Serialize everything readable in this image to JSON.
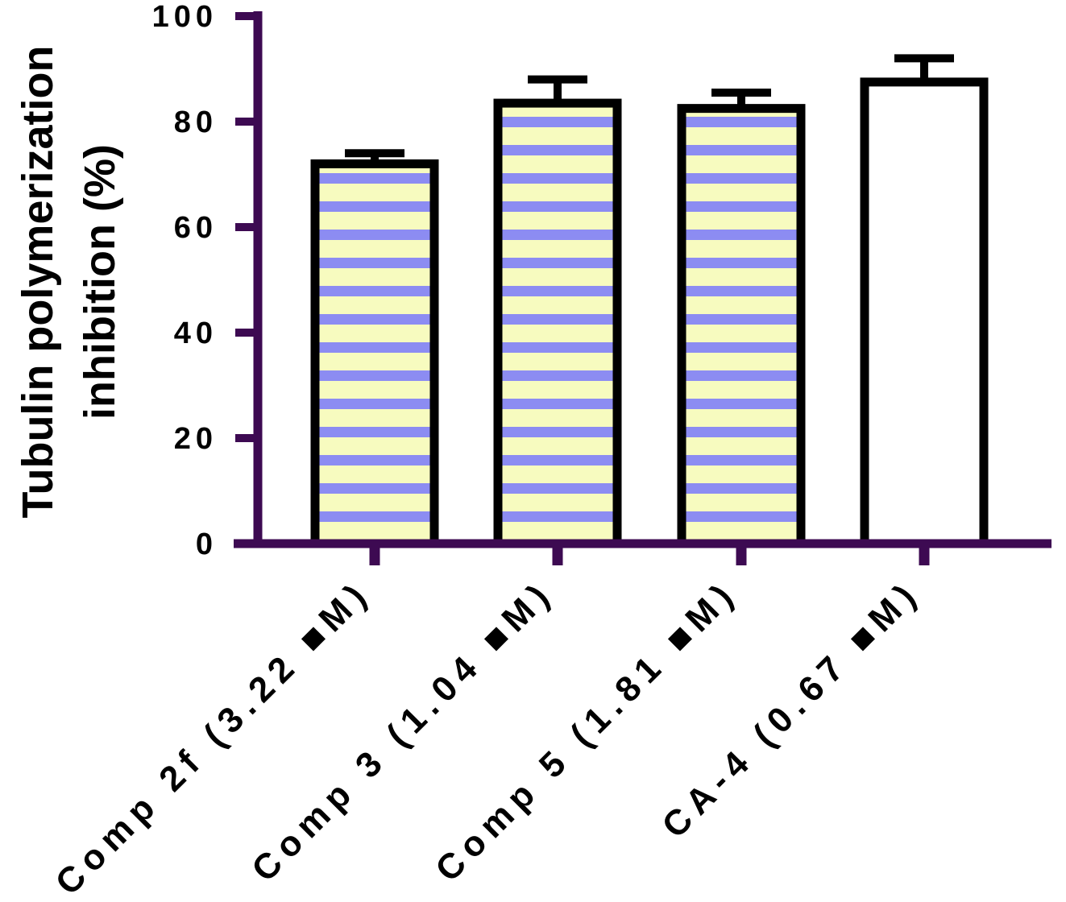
{
  "chart_data": {
    "type": "bar",
    "title": "",
    "xlabel": "",
    "ylabel_lines": [
      "Tubulin polymerization",
      "inhibition (%)"
    ],
    "categories": [
      "Comp 2f (3.22 ■M)",
      "Comp 3 (1.04 ■M)",
      "Comp 5 (1.81 ■M)",
      "CA-4 (0.67 ■M)"
    ],
    "values": [
      72,
      83.5,
      82.5,
      87.5
    ],
    "errors": [
      2,
      4.5,
      3,
      4.5
    ],
    "patterns": [
      "striped",
      "striped",
      "striped",
      "open"
    ],
    "ylim": [
      0,
      100
    ],
    "yticks": [
      0,
      20,
      40,
      60,
      80,
      100
    ],
    "grid": false,
    "colors": {
      "axis": "#3d0a52",
      "bar_outline": "#000000",
      "stripe_a": "#f7fbbf",
      "stripe_b": "#8c8cf2",
      "open_fill": "#ffffff"
    }
  }
}
